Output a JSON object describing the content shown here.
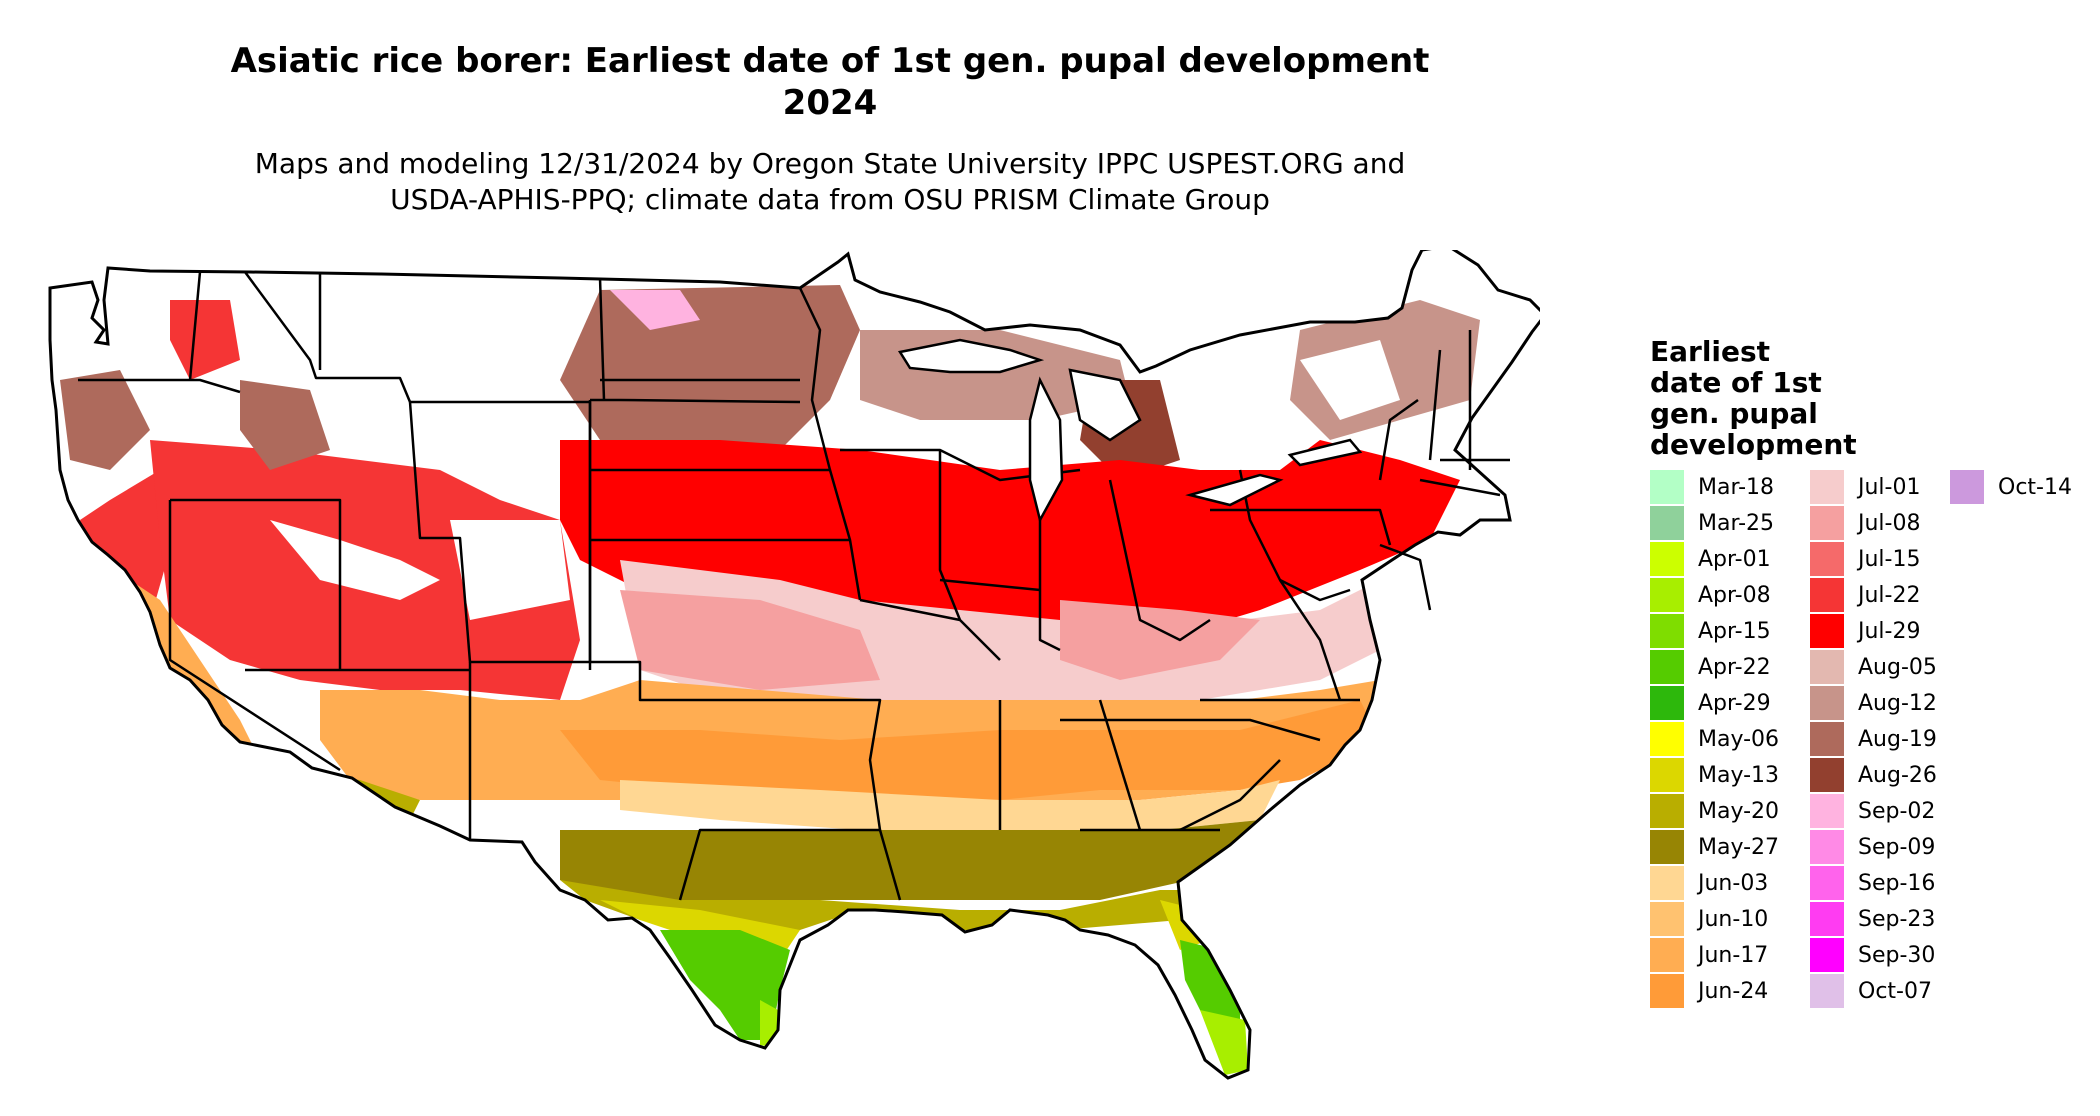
{
  "header": {
    "title_line1": "Asiatic rice borer: Earliest date of 1st gen. pupal development",
    "title_line2": "2024",
    "subtitle_line1": "Maps and modeling 12/31/2024 by Oregon State University IPPC USPEST.ORG and",
    "subtitle_line2": "USDA-APHIS-PPQ; climate data from OSU PRISM Climate Group"
  },
  "legend": {
    "title_lines": [
      "Earliest",
      "date of 1st",
      "gen. pupal",
      "development"
    ],
    "items": [
      {
        "label": "Mar-18",
        "color": "#b3ffc6"
      },
      {
        "label": "Mar-25",
        "color": "#8fd19b"
      },
      {
        "label": "Apr-01",
        "color": "#ccff00"
      },
      {
        "label": "Apr-08",
        "color": "#a8ee00"
      },
      {
        "label": "Apr-15",
        "color": "#7fdd00"
      },
      {
        "label": "Apr-22",
        "color": "#55cc00"
      },
      {
        "label": "Apr-29",
        "color": "#2db80c"
      },
      {
        "label": "May-06",
        "color": "#ffff00"
      },
      {
        "label": "May-13",
        "color": "#dcd700"
      },
      {
        "label": "May-20",
        "color": "#b9ae00"
      },
      {
        "label": "May-27",
        "color": "#978504"
      },
      {
        "label": "Jun-03",
        "color": "#ffd793"
      },
      {
        "label": "Jun-10",
        "color": "#ffc270"
      },
      {
        "label": "Jun-17",
        "color": "#ffad52"
      },
      {
        "label": "Jun-24",
        "color": "#ff9b38"
      },
      {
        "label": "Jul-01",
        "color": "#f6cccc"
      },
      {
        "label": "Jul-08",
        "color": "#f5a0a0"
      },
      {
        "label": "Jul-15",
        "color": "#f56a6a"
      },
      {
        "label": "Jul-22",
        "color": "#f53535"
      },
      {
        "label": "Jul-29",
        "color": "#ff0000"
      },
      {
        "label": "Aug-05",
        "color": "#e3b8b0"
      },
      {
        "label": "Aug-12",
        "color": "#c7948a"
      },
      {
        "label": "Aug-19",
        "color": "#ae6a5c"
      },
      {
        "label": "Aug-26",
        "color": "#92402f"
      },
      {
        "label": "Sep-02",
        "color": "#ffb3e0"
      },
      {
        "label": "Sep-09",
        "color": "#ff8ae6"
      },
      {
        "label": "Sep-16",
        "color": "#ff63ec"
      },
      {
        "label": "Sep-23",
        "color": "#ff3cf2"
      },
      {
        "label": "Sep-30",
        "color": "#ff00ff"
      },
      {
        "label": "Oct-07",
        "color": "#e0c0e8"
      },
      {
        "label": "Oct-14",
        "color": "#cc99dd"
      }
    ]
  }
}
